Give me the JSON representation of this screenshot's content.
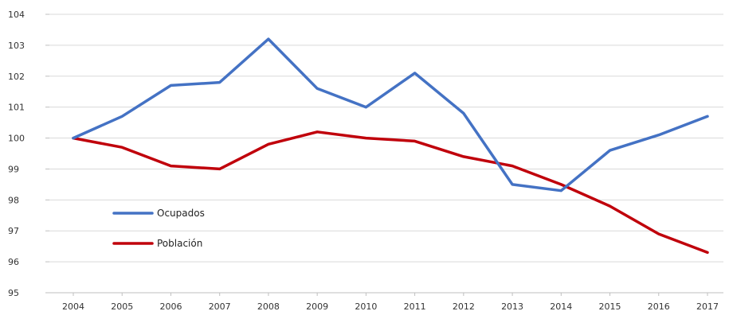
{
  "chart_data": {
    "type": "line",
    "title": "",
    "xlabel": "",
    "ylabel": "",
    "categories": [
      "2004",
      "2005",
      "2006",
      "2007",
      "2008",
      "2009",
      "2010",
      "2011",
      "2012",
      "2013",
      "2014",
      "2015",
      "2016",
      "2017"
    ],
    "ylim": [
      95,
      104
    ],
    "yticks": [
      "95",
      "96",
      "97",
      "98",
      "99",
      "100",
      "101",
      "102",
      "103",
      "104"
    ],
    "grid": true,
    "legend_position": "left",
    "series": [
      {
        "name": "Ocupados",
        "color": "#4472c4",
        "values": [
          100,
          100.7,
          101.7,
          101.8,
          103.2,
          101.6,
          101.0,
          102.1,
          100.8,
          98.5,
          98.3,
          99.6,
          100.1,
          100.7
        ]
      },
      {
        "name": "Población",
        "color": "#c0000b",
        "values": [
          100,
          99.7,
          99.1,
          99.0,
          99.8,
          100.2,
          100.0,
          99.9,
          99.4,
          99.1,
          98.5,
          97.8,
          96.9,
          96.3
        ]
      }
    ]
  }
}
